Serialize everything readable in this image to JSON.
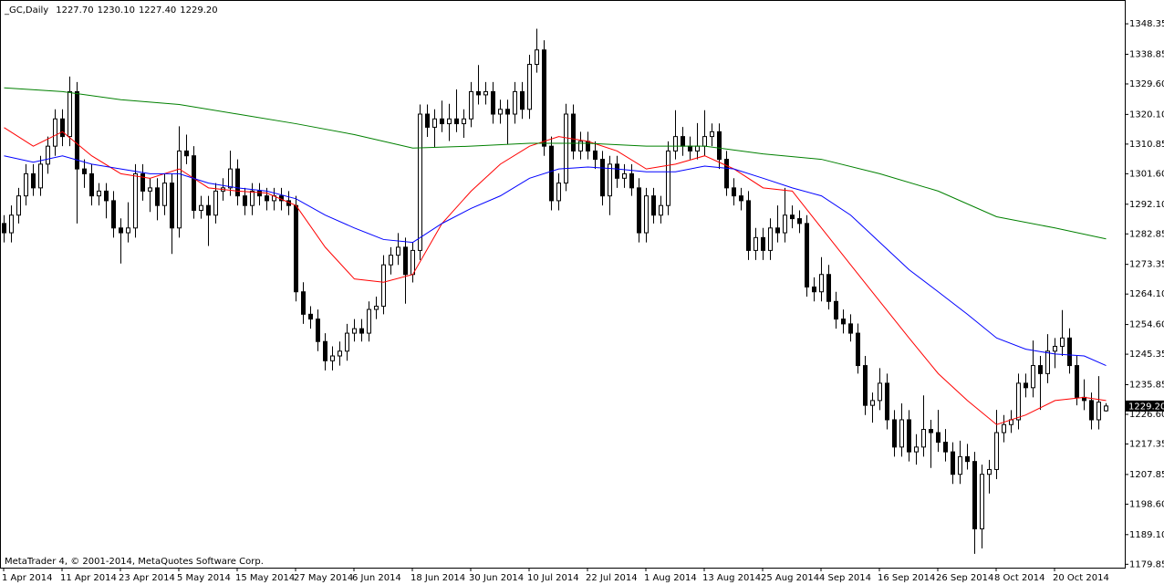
{
  "chart_data": {
    "type": "candlestick",
    "title": "_GC,Daily",
    "header_values": [
      "1227.70",
      "1230.10",
      "1227.40",
      "1229.20"
    ],
    "footer": "MetaTrader 4, © 2001-2014, MetaQuotes Software Corp.",
    "up_color": "#ffffff",
    "down_color": "#000000",
    "categories": [
      "1 Apr 2014",
      null,
      null,
      null,
      null,
      null,
      null,
      null,
      "11 Apr 2014",
      null,
      null,
      null,
      null,
      null,
      null,
      null,
      "23 Apr 2014",
      null,
      null,
      null,
      null,
      null,
      null,
      null,
      "5 May 2014",
      null,
      null,
      null,
      null,
      null,
      null,
      null,
      "15 May 2014",
      null,
      null,
      null,
      null,
      null,
      null,
      null,
      "27 May 2014",
      null,
      null,
      null,
      null,
      null,
      null,
      null,
      "6 Jun 2014",
      null,
      null,
      null,
      null,
      null,
      null,
      null,
      "18 Jun 2014",
      null,
      null,
      null,
      null,
      null,
      null,
      null,
      "30 Jun 2014",
      null,
      null,
      null,
      null,
      null,
      null,
      null,
      "10 Jul 2014",
      null,
      null,
      null,
      null,
      null,
      null,
      null,
      "22 Jul 2014",
      null,
      null,
      null,
      null,
      null,
      null,
      null,
      "1 Aug 2014",
      null,
      null,
      null,
      null,
      null,
      null,
      null,
      "13 Aug 2014",
      null,
      null,
      null,
      null,
      null,
      null,
      null,
      "25 Aug 2014",
      null,
      null,
      null,
      null,
      null,
      null,
      null,
      "4 Sep 2014",
      null,
      null,
      null,
      null,
      null,
      null,
      null,
      "16 Sep 2014",
      null,
      null,
      null,
      null,
      null,
      null,
      null,
      "26 Sep 2014",
      null,
      null,
      null,
      null,
      null,
      null,
      null,
      "8 Oct 2014",
      null,
      null,
      null,
      null,
      null,
      null,
      null,
      "20 Oct 2014",
      null,
      null,
      null,
      null,
      null,
      null,
      null
    ],
    "ohlc": [
      [
        1286.1,
        1288.7,
        1280.2,
        1283.2
      ],
      [
        1283.2,
        1291.7,
        1280.2,
        1288.7
      ],
      [
        1288.7,
        1297.2,
        1286.1,
        1294.7
      ],
      [
        1294.7,
        1304.6,
        1291.7,
        1301.6
      ],
      [
        1301.6,
        1304.6,
        1294.7,
        1297.2
      ],
      [
        1297.2,
        1307.2,
        1294.7,
        1304.6
      ],
      [
        1304.6,
        1313.2,
        1301.6,
        1310.2
      ],
      [
        1310.2,
        1321.7,
        1307.2,
        1318.7
      ],
      [
        1318.7,
        1321.7,
        1310.2,
        1313.2
      ],
      [
        1313.2,
        1331.9,
        1310.2,
        1327.2
      ],
      [
        1327.2,
        1330.2,
        1286.1,
        1303.1
      ],
      [
        1303.1,
        1306.1,
        1297.2,
        1301.6
      ],
      [
        1301.6,
        1304.6,
        1291.7,
        1294.7
      ],
      [
        1294.7,
        1298.7,
        1291.7,
        1296.2
      ],
      [
        1296.2,
        1298.7,
        1287.7,
        1293.2
      ],
      [
        1293.2,
        1296.2,
        1281.7,
        1284.7
      ],
      [
        1284.7,
        1287.7,
        1273.6,
        1283.2
      ],
      [
        1283.2,
        1292.7,
        1280.2,
        1284.7
      ],
      [
        1284.7,
        1304.6,
        1281.7,
        1301.6
      ],
      [
        1301.6,
        1304.6,
        1293.2,
        1296.2
      ],
      [
        1296.2,
        1300.2,
        1289.7,
        1297.2
      ],
      [
        1297.2,
        1300.2,
        1287.1,
        1291.7
      ],
      [
        1291.7,
        1301.7,
        1288.7,
        1298.7
      ],
      [
        1298.7,
        1301.7,
        1276.6,
        1284.7
      ],
      [
        1284.7,
        1316.4,
        1281.7,
        1308.7
      ],
      [
        1308.7,
        1313.8,
        1304.6,
        1307.2
      ],
      [
        1307.2,
        1310.2,
        1287.6,
        1290.2
      ],
      [
        1290.2,
        1294.7,
        1287.6,
        1291.7
      ],
      [
        1291.7,
        1294.7,
        1279.1,
        1288.7
      ],
      [
        1288.7,
        1298.7,
        1286.1,
        1296.2
      ],
      [
        1296.2,
        1300.2,
        1293.2,
        1297.2
      ],
      [
        1297.2,
        1308.8,
        1294.7,
        1303.1
      ],
      [
        1303.1,
        1306.1,
        1291.7,
        1294.7
      ],
      [
        1294.7,
        1297.2,
        1288.7,
        1291.7
      ],
      [
        1291.7,
        1298.7,
        1288.7,
        1296.2
      ],
      [
        1296.2,
        1298.7,
        1291.7,
        1294.7
      ],
      [
        1294.7,
        1297.2,
        1290.2,
        1293.2
      ],
      [
        1293.2,
        1297.2,
        1290.2,
        1294.7
      ],
      [
        1294.7,
        1297.2,
        1290.2,
        1293.2
      ],
      [
        1293.2,
        1296.2,
        1288.7,
        1291.7
      ],
      [
        1291.7,
        1294.7,
        1261.8,
        1264.8
      ],
      [
        1264.8,
        1267.8,
        1254.8,
        1257.8
      ],
      [
        1257.8,
        1260.3,
        1253.3,
        1256.3
      ],
      [
        1256.3,
        1259.3,
        1246.3,
        1249.3
      ],
      [
        1249.3,
        1251.9,
        1240.3,
        1243.3
      ],
      [
        1243.3,
        1247.8,
        1240.3,
        1244.8
      ],
      [
        1244.8,
        1249.3,
        1241.8,
        1246.3
      ],
      [
        1246.3,
        1254.8,
        1243.3,
        1251.9
      ],
      [
        1251.9,
        1256.3,
        1249.3,
        1253.3
      ],
      [
        1253.3,
        1256.3,
        1249.3,
        1251.9
      ],
      [
        1251.9,
        1261.8,
        1249.3,
        1259.3
      ],
      [
        1259.3,
        1263.3,
        1256.3,
        1260.3
      ],
      [
        1260.3,
        1276.2,
        1257.8,
        1273.2
      ],
      [
        1273.2,
        1278.7,
        1270.2,
        1276.2
      ],
      [
        1276.2,
        1283.1,
        1273.2,
        1278.7
      ],
      [
        1278.7,
        1281.7,
        1261.1,
        1270.2
      ],
      [
        1270.2,
        1280.2,
        1267.7,
        1277.7
      ],
      [
        1277.7,
        1323.2,
        1274.7,
        1320.2
      ],
      [
        1320.2,
        1323.2,
        1313.1,
        1316.1
      ],
      [
        1316.1,
        1321.7,
        1309.8,
        1318.7
      ],
      [
        1318.7,
        1324.4,
        1314.6,
        1317.2
      ],
      [
        1317.2,
        1323.4,
        1311.8,
        1318.7
      ],
      [
        1318.7,
        1327.9,
        1314.6,
        1317.2
      ],
      [
        1317.2,
        1321.7,
        1312.8,
        1318.7
      ],
      [
        1318.7,
        1330.2,
        1316.1,
        1327.2
      ],
      [
        1327.2,
        1335.5,
        1323.2,
        1326.2
      ],
      [
        1326.2,
        1330.2,
        1323.2,
        1327.2
      ],
      [
        1327.2,
        1330.2,
        1317.2,
        1320.2
      ],
      [
        1320.2,
        1324.7,
        1317.2,
        1321.7
      ],
      [
        1321.7,
        1324.7,
        1310.8,
        1320.2
      ],
      [
        1320.2,
        1330.2,
        1317.2,
        1327.2
      ],
      [
        1327.2,
        1330.2,
        1318.7,
        1321.7
      ],
      [
        1321.7,
        1338.7,
        1318.7,
        1335.7
      ],
      [
        1335.7,
        1346.8,
        1333.1,
        1340.2
      ],
      [
        1340.2,
        1343.2,
        1307.2,
        1310.2
      ],
      [
        1310.2,
        1313.2,
        1290.2,
        1293.2
      ],
      [
        1293.2,
        1301.7,
        1290.2,
        1298.7
      ],
      [
        1298.7,
        1323.4,
        1296.2,
        1320.2
      ],
      [
        1320.2,
        1323.2,
        1306.1,
        1308.7
      ],
      [
        1308.7,
        1314.7,
        1306.1,
        1311.7
      ],
      [
        1311.7,
        1314.7,
        1306.1,
        1308.7
      ],
      [
        1308.7,
        1311.7,
        1303.1,
        1306.1
      ],
      [
        1306.1,
        1308.7,
        1291.7,
        1294.7
      ],
      [
        1294.7,
        1307.2,
        1288.7,
        1304.6
      ],
      [
        1304.6,
        1307.2,
        1297.2,
        1300.2
      ],
      [
        1300.2,
        1304.6,
        1297.2,
        1301.6
      ],
      [
        1301.6,
        1304.6,
        1294.7,
        1297.2
      ],
      [
        1297.2,
        1300.2,
        1280.2,
        1283.2
      ],
      [
        1283.2,
        1297.2,
        1280.2,
        1294.7
      ],
      [
        1294.7,
        1297.2,
        1286.1,
        1288.7
      ],
      [
        1288.7,
        1294.7,
        1286.1,
        1291.7
      ],
      [
        1291.7,
        1311.7,
        1288.7,
        1308.7
      ],
      [
        1308.7,
        1321.4,
        1306.1,
        1313.2
      ],
      [
        1313.2,
        1316.2,
        1307.2,
        1310.2
      ],
      [
        1310.2,
        1313.2,
        1306.1,
        1308.7
      ],
      [
        1308.7,
        1317.4,
        1306.1,
        1310.2
      ],
      [
        1310.2,
        1321.4,
        1307.2,
        1313.2
      ],
      [
        1313.2,
        1317.3,
        1310.2,
        1314.7
      ],
      [
        1314.7,
        1317.3,
        1303.1,
        1306.1
      ],
      [
        1306.1,
        1308.7,
        1294.7,
        1297.2
      ],
      [
        1297.2,
        1300.2,
        1291.7,
        1294.7
      ],
      [
        1294.7,
        1297.2,
        1290.2,
        1293.2
      ],
      [
        1293.2,
        1296.2,
        1274.7,
        1277.7
      ],
      [
        1277.7,
        1284.7,
        1274.7,
        1281.7
      ],
      [
        1281.7,
        1284.7,
        1274.7,
        1277.7
      ],
      [
        1277.7,
        1287.7,
        1274.7,
        1284.7
      ],
      [
        1284.7,
        1291.7,
        1280.2,
        1283.2
      ],
      [
        1283.2,
        1297.2,
        1280.2,
        1288.7
      ],
      [
        1288.7,
        1291.7,
        1284.6,
        1287.6
      ],
      [
        1287.6,
        1290.2,
        1283.1,
        1286.1
      ],
      [
        1286.1,
        1288.7,
        1263.3,
        1266.3
      ],
      [
        1266.3,
        1269.3,
        1261.8,
        1264.8
      ],
      [
        1264.8,
        1275.6,
        1261.8,
        1270.2
      ],
      [
        1270.2,
        1273.2,
        1259.3,
        1261.8
      ],
      [
        1261.8,
        1264.8,
        1253.3,
        1256.3
      ],
      [
        1256.3,
        1259.3,
        1251.8,
        1254.8
      ],
      [
        1254.8,
        1257.8,
        1249.3,
        1251.9
      ],
      [
        1251.9,
        1254.9,
        1239.3,
        1241.8
      ],
      [
        1241.8,
        1244.8,
        1226.4,
        1229.4
      ],
      [
        1229.4,
        1233.4,
        1224.0,
        1230.9
      ],
      [
        1230.9,
        1241.0,
        1227.9,
        1236.3
      ],
      [
        1236.3,
        1239.3,
        1221.9,
        1224.9
      ],
      [
        1224.9,
        1227.9,
        1213.4,
        1216.4
      ],
      [
        1216.4,
        1230.0,
        1213.4,
        1224.9
      ],
      [
        1224.9,
        1227.9,
        1211.9,
        1214.9
      ],
      [
        1214.9,
        1220.4,
        1210.9,
        1216.4
      ],
      [
        1216.4,
        1232.5,
        1213.4,
        1221.9
      ],
      [
        1221.9,
        1224.9,
        1209.9,
        1220.9
      ],
      [
        1220.9,
        1228.0,
        1214.9,
        1217.9
      ],
      [
        1217.9,
        1222.0,
        1211.9,
        1214.9
      ],
      [
        1214.9,
        1217.9,
        1204.9,
        1207.9
      ],
      [
        1207.9,
        1218.4,
        1204.9,
        1213.4
      ],
      [
        1213.4,
        1217.4,
        1209.4,
        1211.9
      ],
      [
        1211.9,
        1214.9,
        1183.1,
        1190.9
      ],
      [
        1190.9,
        1210.9,
        1184.8,
        1207.9
      ],
      [
        1207.9,
        1212.4,
        1201.9,
        1209.4
      ],
      [
        1209.4,
        1228.0,
        1206.4,
        1220.9
      ],
      [
        1220.9,
        1226.4,
        1217.9,
        1223.4
      ],
      [
        1223.4,
        1227.9,
        1220.8,
        1224.9
      ],
      [
        1224.9,
        1239.3,
        1221.9,
        1236.3
      ],
      [
        1236.3,
        1239.3,
        1231.9,
        1234.9
      ],
      [
        1234.9,
        1249.6,
        1231.9,
        1241.8
      ],
      [
        1241.8,
        1244.8,
        1228.0,
        1239.3
      ],
      [
        1239.3,
        1251.6,
        1236.3,
        1246.3
      ],
      [
        1246.3,
        1250.4,
        1241.0,
        1247.8
      ],
      [
        1247.8,
        1259.1,
        1244.8,
        1250.4
      ],
      [
        1250.4,
        1253.4,
        1239.3,
        1241.8
      ],
      [
        1241.8,
        1244.8,
        1229.4,
        1231.9
      ],
      [
        1231.9,
        1237.5,
        1227.9,
        1230.9
      ],
      [
        1230.9,
        1233.4,
        1221.9,
        1224.9
      ],
      [
        1224.9,
        1238.5,
        1221.9,
        1230.4
      ],
      [
        1227.7,
        1230.1,
        1227.4,
        1229.2
      ]
    ],
    "lines": [
      {
        "color": "#ff0000",
        "x": [
          0,
          4,
          8,
          12,
          16,
          20,
          24,
          28,
          32,
          36,
          40,
          44,
          48,
          52,
          56,
          60,
          64,
          68,
          72,
          76,
          80,
          84,
          88,
          92,
          96,
          100,
          104,
          108,
          112,
          116,
          120,
          124,
          128,
          132,
          136,
          140,
          144,
          148,
          151
        ],
        "values": [
          1316.0,
          1310.2,
          1314.7,
          1307.2,
          1301.6,
          1300.2,
          1303.1,
          1297.2,
          1296.2,
          1295.6,
          1291.7,
          1278.7,
          1268.8,
          1267.8,
          1270.2,
          1286.1,
          1296.2,
          1304.6,
          1310.2,
          1313.2,
          1311.7,
          1308.7,
          1303.1,
          1304.6,
          1307.2,
          1303.1,
          1297.2,
          1296.2,
          1284.7,
          1273.2,
          1261.8,
          1250.4,
          1239.3,
          1230.9,
          1223.4,
          1226.4,
          1230.9,
          1231.9,
          1230.9
        ]
      },
      {
        "color": "#0000ff",
        "x": [
          0,
          4,
          8,
          12,
          16,
          20,
          24,
          28,
          32,
          36,
          40,
          44,
          48,
          52,
          56,
          60,
          64,
          68,
          72,
          76,
          80,
          84,
          88,
          92,
          96,
          100,
          104,
          108,
          112,
          116,
          120,
          124,
          128,
          132,
          136,
          140,
          144,
          148,
          151
        ],
        "values": [
          1307.2,
          1305.2,
          1307.2,
          1304.6,
          1303.1,
          1301.6,
          1301.6,
          1298.7,
          1297.2,
          1296.2,
          1293.8,
          1288.7,
          1284.7,
          1281.1,
          1280.2,
          1286.1,
          1290.8,
          1294.7,
          1300.2,
          1303.1,
          1303.7,
          1303.1,
          1302.2,
          1302.2,
          1304.0,
          1303.1,
          1300.2,
          1297.2,
          1294.7,
          1288.7,
          1280.2,
          1271.7,
          1264.8,
          1257.8,
          1250.4,
          1246.9,
          1245.4,
          1244.8,
          1241.8
        ]
      },
      {
        "color": "#008000",
        "x": [
          0,
          8,
          16,
          24,
          32,
          40,
          48,
          56,
          64,
          72,
          80,
          88,
          96,
          104,
          112,
          120,
          128,
          136,
          144,
          151
        ],
        "values": [
          1328.4,
          1327.2,
          1324.7,
          1323.2,
          1320.2,
          1317.2,
          1313.8,
          1309.6,
          1310.2,
          1311.1,
          1311.1,
          1310.2,
          1310.2,
          1307.8,
          1306.1,
          1301.6,
          1296.2,
          1288.2,
          1284.7,
          1281.3
        ]
      }
    ],
    "ylim": [
      1178.8,
      1355.2
    ],
    "yticks": [
      1348.35,
      1338.85,
      {
        "value": 1329.6,
        "label": "1329.60"
      },
      {
        "value": 1320.1,
        "label": "1320.10"
      },
      1310.85,
      {
        "value": 1301.6,
        "label": "1301.60"
      },
      {
        "value": 1292.1,
        "label": "1292.10"
      },
      1282.85,
      1273.35,
      {
        "value": 1264.1,
        "label": "1264.10"
      },
      {
        "value": 1254.6,
        "label": "1254.60"
      },
      1245.35,
      1235.85,
      {
        "value": 1226.6,
        "label": "1226.60"
      },
      1217.35,
      1207.85,
      {
        "value": 1198.6,
        "label": "1198.60"
      },
      {
        "value": 1189.1,
        "label": "1189.10"
      },
      1179.85
    ],
    "current_price": {
      "value": 1229.2,
      "label": "1229.20"
    }
  }
}
